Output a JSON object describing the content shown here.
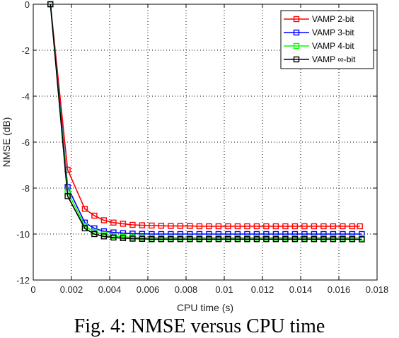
{
  "caption": "Fig. 4: NMSE versus CPU time",
  "chart_data": {
    "type": "line",
    "xlabel": "CPU time (s)",
    "ylabel": "NMSE (dB)",
    "xlim": [
      0,
      0.018
    ],
    "ylim": [
      -12,
      0
    ],
    "xticks": [
      0,
      0.002,
      0.004,
      0.006,
      0.008,
      0.01,
      0.012,
      0.014,
      0.016,
      0.018
    ],
    "xtick_labels": [
      "0",
      "0.002",
      "0.004",
      "0.006",
      "0.008",
      "0.01",
      "0.012",
      "0.014",
      "0.016",
      "0.018"
    ],
    "yticks": [
      0,
      -2,
      -4,
      -6,
      -8,
      -10,
      -12
    ],
    "ytick_labels": [
      "0",
      "-2",
      "-4",
      "-6",
      "-8",
      "-10",
      "-12"
    ],
    "grid": true,
    "grid_style": "dotted",
    "legend_position": "top-right",
    "marker": "square",
    "series": [
      {
        "name": "VAMP 2-bit",
        "color": "#ff0000",
        "x": [
          0.0009,
          0.0018,
          0.0027,
          0.0032,
          0.0037,
          0.0042,
          0.0047,
          0.0052,
          0.0057,
          0.0062,
          0.0067,
          0.0072,
          0.0077,
          0.0082,
          0.0087,
          0.0092,
          0.0097,
          0.0102,
          0.0107,
          0.0112,
          0.0117,
          0.0122,
          0.0127,
          0.0132,
          0.0137,
          0.0142,
          0.0147,
          0.0152,
          0.0157,
          0.0162,
          0.0167,
          0.0171
        ],
        "y": [
          0,
          -7.2,
          -8.9,
          -9.2,
          -9.4,
          -9.5,
          -9.55,
          -9.6,
          -9.62,
          -9.63,
          -9.64,
          -9.65,
          -9.65,
          -9.65,
          -9.66,
          -9.66,
          -9.66,
          -9.66,
          -9.66,
          -9.66,
          -9.66,
          -9.66,
          -9.66,
          -9.66,
          -9.66,
          -9.66,
          -9.66,
          -9.66,
          -9.66,
          -9.66,
          -9.66,
          -9.66
        ]
      },
      {
        "name": "VAMP 3-bit",
        "color": "#0000ff",
        "x": [
          0.0009,
          0.0018,
          0.0027,
          0.0032,
          0.0037,
          0.0042,
          0.0047,
          0.0052,
          0.0057,
          0.0062,
          0.0067,
          0.0072,
          0.0077,
          0.0082,
          0.0087,
          0.0092,
          0.0097,
          0.0102,
          0.0107,
          0.0112,
          0.0117,
          0.0122,
          0.0127,
          0.0132,
          0.0137,
          0.0142,
          0.0147,
          0.0152,
          0.0157,
          0.0162,
          0.0167,
          0.0172
        ],
        "y": [
          0,
          -7.95,
          -9.5,
          -9.75,
          -9.88,
          -9.93,
          -9.96,
          -9.98,
          -9.99,
          -10.0,
          -10.0,
          -10.0,
          -10.0,
          -10.0,
          -10.0,
          -10.0,
          -10.0,
          -10.0,
          -10.0,
          -10.0,
          -10.0,
          -10.0,
          -10.0,
          -10.0,
          -10.0,
          -10.0,
          -10.0,
          -10.0,
          -10.0,
          -10.0,
          -10.0,
          -10.0
        ]
      },
      {
        "name": "VAMP 4-bit",
        "color": "#00ff00",
        "x": [
          0.0009,
          0.0018,
          0.0027,
          0.0032,
          0.0037,
          0.0042,
          0.0047,
          0.0052,
          0.0057,
          0.0062,
          0.0067,
          0.0072,
          0.0077,
          0.0082,
          0.0087,
          0.0092,
          0.0097,
          0.0102,
          0.0107,
          0.0112,
          0.0117,
          0.0122,
          0.0127,
          0.0132,
          0.0137,
          0.0142,
          0.0147,
          0.0152,
          0.0157,
          0.0162,
          0.0167,
          0.0172
        ],
        "y": [
          0,
          -8.15,
          -9.65,
          -9.9,
          -10.02,
          -10.08,
          -10.12,
          -10.14,
          -10.15,
          -10.16,
          -10.16,
          -10.16,
          -10.16,
          -10.16,
          -10.16,
          -10.16,
          -10.16,
          -10.16,
          -10.16,
          -10.16,
          -10.16,
          -10.16,
          -10.16,
          -10.16,
          -10.16,
          -10.16,
          -10.16,
          -10.16,
          -10.16,
          -10.16,
          -10.16,
          -10.16
        ]
      },
      {
        "name": "VAMP ∞-bit",
        "color": "#000000",
        "x": [
          0.0009,
          0.0018,
          0.0027,
          0.0032,
          0.0037,
          0.0042,
          0.0047,
          0.0052,
          0.0057,
          0.0062,
          0.0067,
          0.0072,
          0.0077,
          0.0082,
          0.0087,
          0.0092,
          0.0097,
          0.0102,
          0.0107,
          0.0112,
          0.0117,
          0.0122,
          0.0127,
          0.0132,
          0.0137,
          0.0142,
          0.0147,
          0.0152,
          0.0157,
          0.0162,
          0.0167,
          0.0172
        ],
        "y": [
          0,
          -8.35,
          -9.75,
          -10.0,
          -10.1,
          -10.15,
          -10.18,
          -10.2,
          -10.21,
          -10.22,
          -10.22,
          -10.22,
          -10.22,
          -10.22,
          -10.22,
          -10.22,
          -10.22,
          -10.22,
          -10.22,
          -10.22,
          -10.22,
          -10.22,
          -10.22,
          -10.22,
          -10.22,
          -10.22,
          -10.22,
          -10.22,
          -10.22,
          -10.22,
          -10.22,
          -10.23
        ]
      }
    ]
  }
}
